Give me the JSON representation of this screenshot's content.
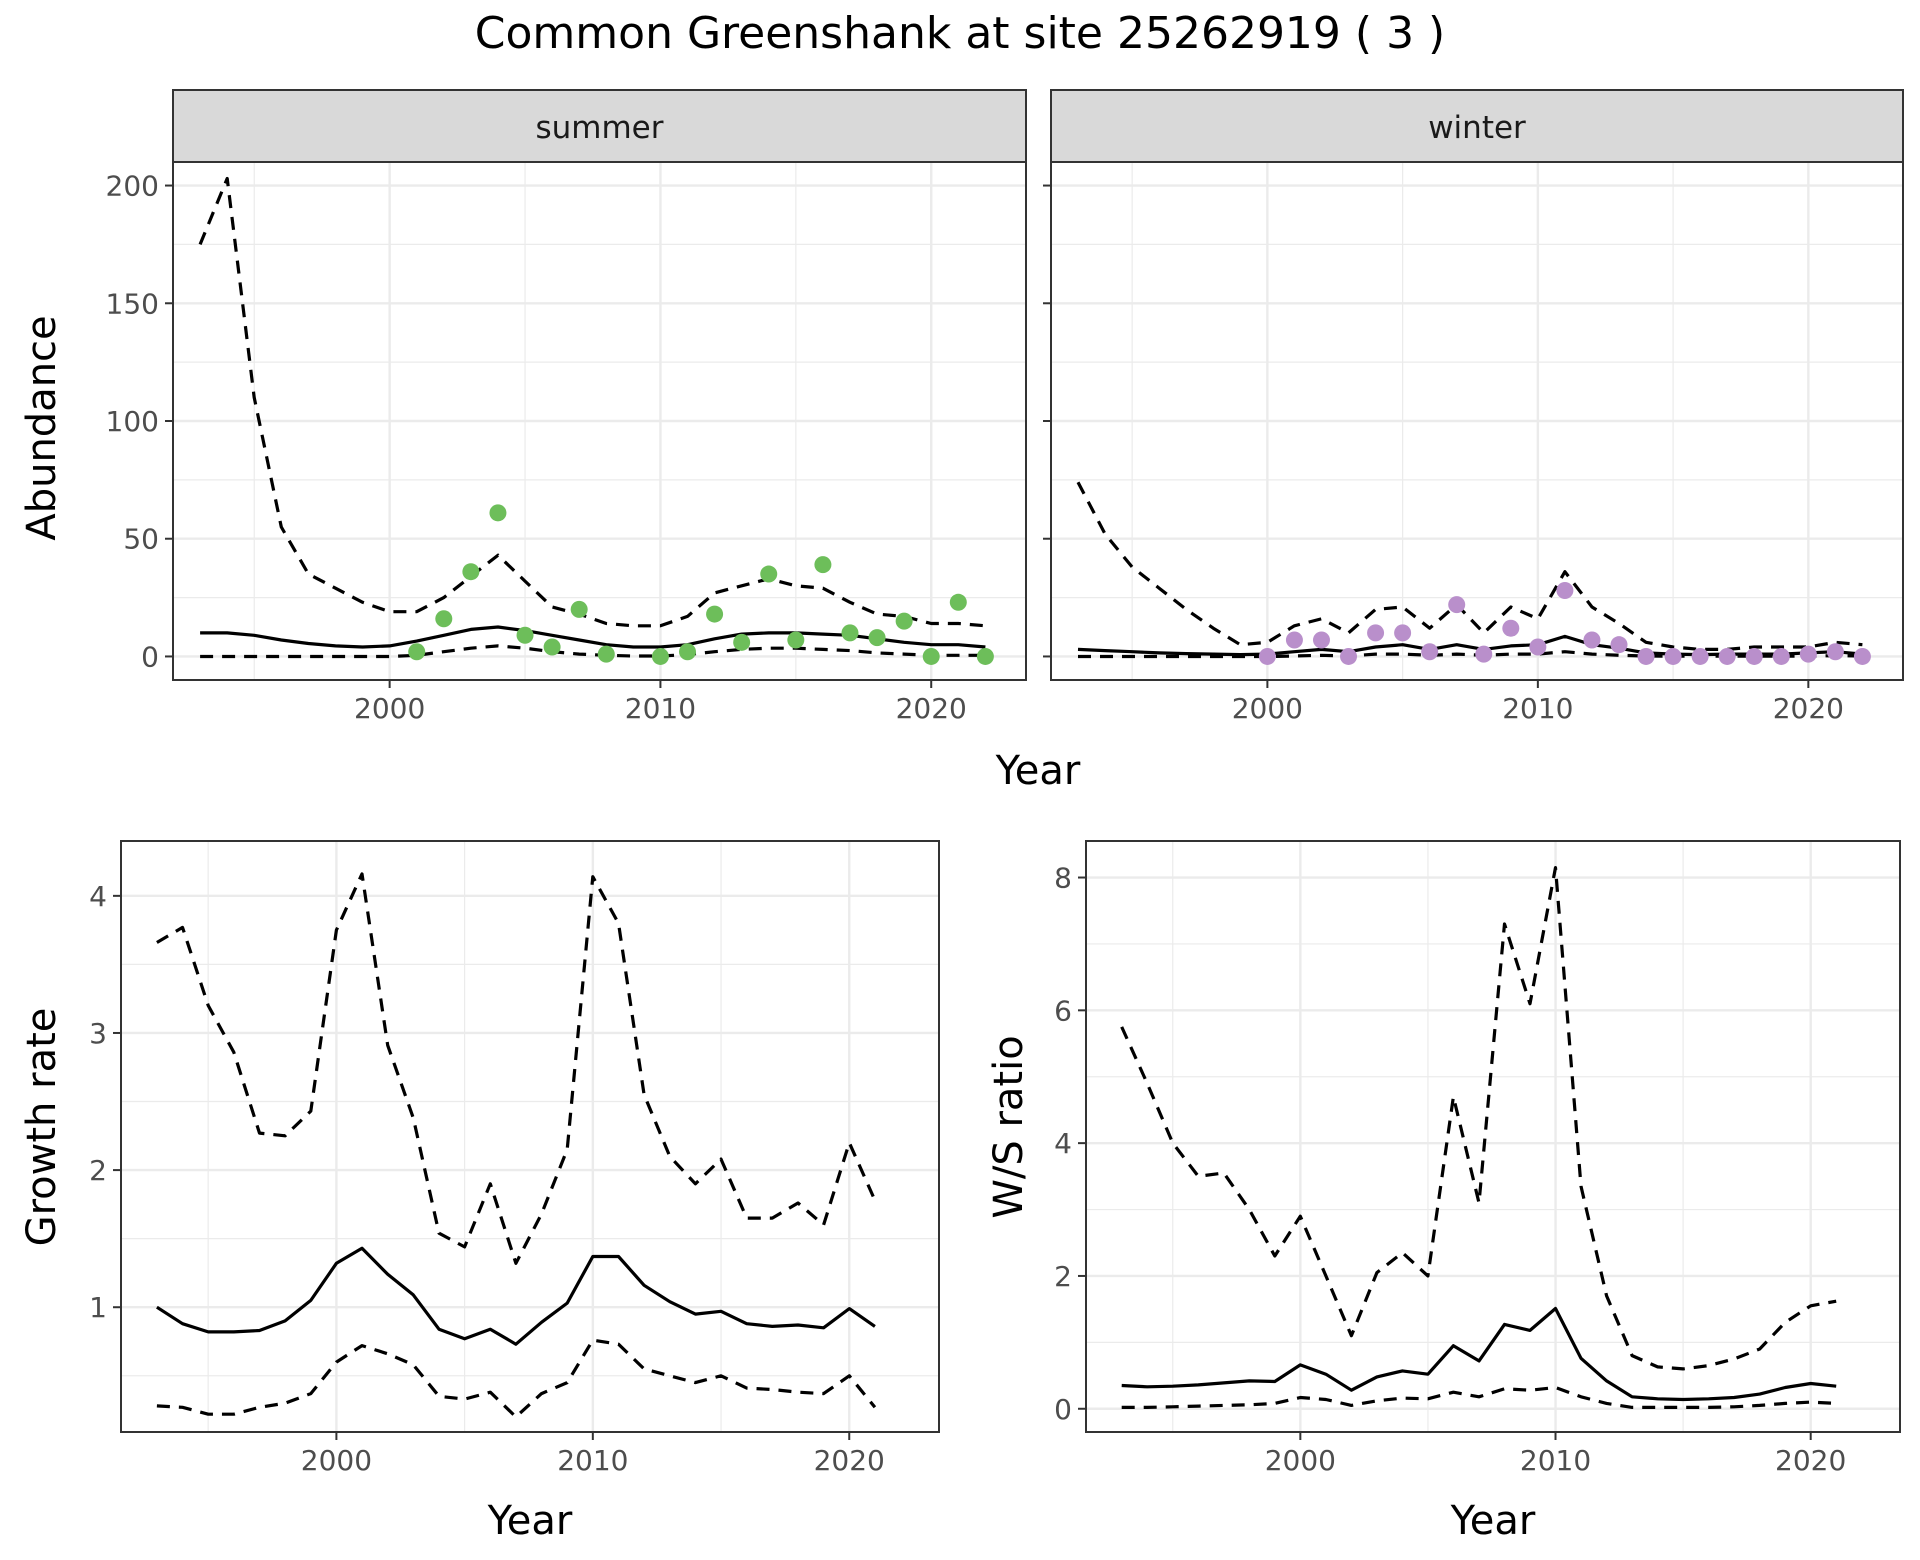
{
  "title": "Common Greenshank at site 25262919 ( 3 )",
  "colors": {
    "summer_points": "#6DBE5A",
    "winter_points": "#B98FCB",
    "lines": "#000000",
    "grid": "#EBEBEB",
    "strip_fill": "#D9D9D9"
  },
  "chart_data": [
    {
      "type": "line",
      "panel": "summer",
      "strip_label": "summer",
      "xlabel": "Year",
      "ylabel": "Abundance",
      "xlim": [
        1992,
        2023.5
      ],
      "ylim": [
        -10,
        210
      ],
      "xticks": [
        2000,
        2010,
        2020
      ],
      "yticks": [
        0,
        50,
        100,
        150,
        200
      ],
      "grid": true,
      "series": [
        {
          "style": "solid",
          "x": [
            1993,
            1994,
            1995,
            1996,
            1997,
            1998,
            1999,
            2000,
            2001,
            2002,
            2003,
            2004,
            2005,
            2006,
            2007,
            2008,
            2009,
            2010,
            2011,
            2012,
            2013,
            2014,
            2015,
            2016,
            2017,
            2018,
            2019,
            2020,
            2021,
            2022
          ],
          "y": [
            10,
            10,
            9,
            7,
            5.5,
            4.5,
            4,
            4.5,
            6.5,
            9,
            11.5,
            12.5,
            11,
            9,
            7,
            5,
            4,
            4,
            5,
            7.5,
            9.5,
            10,
            10,
            9.5,
            9,
            7.5,
            6,
            5,
            5,
            4
          ]
        },
        {
          "style": "dashed",
          "x": [
            1993,
            1994,
            1995,
            1996,
            1997,
            1998,
            1999,
            2000,
            2001,
            2002,
            2003,
            2004,
            2005,
            2006,
            2007,
            2008,
            2009,
            2010,
            2011,
            2012,
            2013,
            2014,
            2015,
            2016,
            2017,
            2018,
            2019,
            2020,
            2021,
            2022
          ],
          "y": [
            175,
            203,
            110,
            55,
            35,
            29,
            23,
            19,
            19,
            25,
            34,
            43,
            32,
            21,
            18,
            14,
            13,
            13,
            17,
            27,
            30,
            33,
            30,
            29,
            23,
            18,
            17,
            14,
            14,
            13
          ]
        },
        {
          "style": "dashed",
          "x": [
            1993,
            1994,
            1995,
            1996,
            1997,
            1998,
            1999,
            2000,
            2001,
            2002,
            2003,
            2004,
            2005,
            2006,
            2007,
            2008,
            2009,
            2010,
            2011,
            2012,
            2013,
            2014,
            2015,
            2016,
            2017,
            2018,
            2019,
            2020,
            2021,
            2022
          ],
          "y": [
            0,
            0,
            0,
            0,
            0,
            0,
            0,
            0,
            0.5,
            2,
            3.5,
            4.5,
            3.5,
            2,
            1,
            0.5,
            0.2,
            0.2,
            0.8,
            2,
            3,
            3.5,
            3.5,
            3,
            2.5,
            1.5,
            1,
            0.5,
            0.5,
            0.5
          ]
        }
      ],
      "points": {
        "x": [
          2001,
          2002,
          2003,
          2004,
          2005,
          2006,
          2007,
          2008,
          2010,
          2011,
          2012,
          2013,
          2014,
          2015,
          2016,
          2017,
          2018,
          2019,
          2020,
          2021,
          2022
        ],
        "y": [
          2,
          16,
          36,
          61,
          9,
          4,
          20,
          1,
          0,
          2,
          18,
          6,
          35,
          7,
          39,
          10,
          8,
          15,
          0,
          23,
          0
        ]
      }
    },
    {
      "type": "line",
      "panel": "winter",
      "strip_label": "winter",
      "xlabel": "Year",
      "ylabel": "Abundance",
      "xlim": [
        1992,
        2023.5
      ],
      "ylim": [
        -10,
        210
      ],
      "xticks": [
        2000,
        2010,
        2020
      ],
      "yticks": [
        0,
        50,
        100,
        150,
        200
      ],
      "grid": true,
      "series": [
        {
          "style": "solid",
          "x": [
            1993,
            1994,
            1995,
            1996,
            1997,
            1998,
            1999,
            2000,
            2001,
            2002,
            2003,
            2004,
            2005,
            2006,
            2007,
            2008,
            2009,
            2010,
            2011,
            2012,
            2013,
            2014,
            2015,
            2016,
            2017,
            2018,
            2019,
            2020,
            2021,
            2022
          ],
          "y": [
            3,
            2.5,
            2,
            1.5,
            1.2,
            1,
            0.8,
            1,
            2,
            3,
            2,
            4,
            5,
            3,
            5,
            3,
            4.5,
            5,
            8.5,
            5,
            3.5,
            1.5,
            1,
            0.8,
            1,
            1,
            1,
            1.5,
            2,
            1
          ]
        },
        {
          "style": "dashed",
          "x": [
            1993,
            1994,
            1995,
            1996,
            1997,
            1998,
            1999,
            2000,
            2001,
            2002,
            2003,
            2004,
            2005,
            2006,
            2007,
            2008,
            2009,
            2010,
            2011,
            2012,
            2013,
            2014,
            2015,
            2016,
            2017,
            2018,
            2019,
            2020,
            2021,
            2022
          ],
          "y": [
            74,
            52,
            38,
            29,
            20,
            12,
            5,
            6,
            13,
            16,
            10,
            20,
            21,
            12,
            22,
            10,
            21,
            16,
            36,
            21,
            14,
            6,
            4,
            3,
            3,
            4,
            4,
            4,
            6,
            5
          ]
        },
        {
          "style": "dashed",
          "x": [
            1993,
            1994,
            1995,
            1996,
            1997,
            1998,
            1999,
            2000,
            2001,
            2002,
            2003,
            2004,
            2005,
            2006,
            2007,
            2008,
            2009,
            2010,
            2011,
            2012,
            2013,
            2014,
            2015,
            2016,
            2017,
            2018,
            2019,
            2020,
            2021,
            2022
          ],
          "y": [
            0,
            0,
            0,
            0,
            0,
            0,
            0,
            0,
            0.2,
            0.5,
            0.2,
            1,
            1,
            0.5,
            1,
            0.5,
            1,
            1,
            2,
            1,
            0.5,
            0.2,
            0.1,
            0.1,
            0.1,
            0.1,
            0.1,
            0.2,
            0.3,
            0.2
          ]
        }
      ],
      "points": {
        "x": [
          2000,
          2001,
          2002,
          2003,
          2004,
          2005,
          2006,
          2007,
          2008,
          2009,
          2010,
          2011,
          2012,
          2013,
          2014,
          2015,
          2016,
          2017,
          2018,
          2019,
          2020,
          2021,
          2022
        ],
        "y": [
          0,
          7,
          7,
          0,
          10,
          10,
          2,
          22,
          1,
          12,
          4,
          28,
          7,
          5,
          0,
          0,
          0,
          0,
          0,
          0,
          1,
          2,
          0
        ]
      }
    },
    {
      "type": "line",
      "panel": "growth",
      "xlabel": "Year",
      "ylabel": "Growth rate",
      "xlim": [
        1991.6,
        2023.5
      ],
      "ylim": [
        0.09,
        4.4
      ],
      "xticks": [
        2000,
        2010,
        2020
      ],
      "yticks": [
        1,
        2,
        3,
        4
      ],
      "grid": true,
      "series": [
        {
          "style": "solid",
          "x": [
            1993,
            1994,
            1995,
            1996,
            1997,
            1998,
            1999,
            2000,
            2001,
            2002,
            2003,
            2004,
            2005,
            2006,
            2007,
            2008,
            2009,
            2010,
            2011,
            2012,
            2013,
            2014,
            2015,
            2016,
            2017,
            2018,
            2019,
            2020,
            2021
          ],
          "y": [
            1.0,
            0.88,
            0.82,
            0.82,
            0.83,
            0.9,
            1.05,
            1.32,
            1.43,
            1.24,
            1.09,
            0.84,
            0.77,
            0.84,
            0.73,
            0.89,
            1.03,
            1.37,
            1.37,
            1.16,
            1.04,
            0.95,
            0.97,
            0.88,
            0.86,
            0.87,
            0.85,
            0.99,
            0.86
          ]
        },
        {
          "style": "dashed",
          "x": [
            1993,
            1994,
            1995,
            1996,
            1997,
            1998,
            1999,
            2000,
            2001,
            2002,
            2003,
            2004,
            2005,
            2006,
            2007,
            2008,
            2009,
            2010,
            2011,
            2012,
            2013,
            2014,
            2015,
            2016,
            2017,
            2018,
            2019,
            2020,
            2021
          ],
          "y": [
            3.66,
            3.77,
            3.2,
            2.86,
            2.27,
            2.25,
            2.43,
            3.75,
            4.16,
            2.91,
            2.38,
            1.54,
            1.44,
            1.9,
            1.32,
            1.68,
            2.15,
            4.14,
            3.8,
            2.55,
            2.1,
            1.9,
            2.08,
            1.65,
            1.65,
            1.76,
            1.6,
            2.2,
            1.78
          ]
        },
        {
          "style": "dashed",
          "x": [
            1993,
            1994,
            1995,
            1996,
            1997,
            1998,
            1999,
            2000,
            2001,
            2002,
            2003,
            2004,
            2005,
            2006,
            2007,
            2008,
            2009,
            2010,
            2011,
            2012,
            2013,
            2014,
            2015,
            2016,
            2017,
            2018,
            2019,
            2020,
            2021
          ],
          "y": [
            0.28,
            0.27,
            0.22,
            0.22,
            0.27,
            0.3,
            0.37,
            0.6,
            0.72,
            0.66,
            0.58,
            0.35,
            0.33,
            0.38,
            0.2,
            0.37,
            0.45,
            0.76,
            0.73,
            0.55,
            0.5,
            0.45,
            0.5,
            0.41,
            0.4,
            0.38,
            0.37,
            0.5,
            0.27
          ]
        }
      ]
    },
    {
      "type": "line",
      "panel": "ratio",
      "xlabel": "Year",
      "ylabel": "W/S ratio",
      "xlim": [
        1991.6,
        2023.5
      ],
      "ylim": [
        -0.35,
        8.55
      ],
      "xticks": [
        2000,
        2010,
        2020
      ],
      "yticks": [
        0,
        2,
        4,
        6,
        8
      ],
      "grid": true,
      "series": [
        {
          "style": "solid",
          "x": [
            1993,
            1994,
            1995,
            1996,
            1997,
            1998,
            1999,
            2000,
            2001,
            2002,
            2003,
            2004,
            2005,
            2006,
            2007,
            2008,
            2009,
            2010,
            2011,
            2012,
            2013,
            2014,
            2015,
            2016,
            2017,
            2018,
            2019,
            2020,
            2021
          ],
          "y": [
            0.35,
            0.33,
            0.34,
            0.36,
            0.39,
            0.42,
            0.41,
            0.66,
            0.52,
            0.28,
            0.48,
            0.57,
            0.52,
            0.95,
            0.72,
            1.27,
            1.18,
            1.51,
            0.76,
            0.42,
            0.18,
            0.15,
            0.14,
            0.15,
            0.17,
            0.22,
            0.32,
            0.38,
            0.34
          ]
        },
        {
          "style": "dashed",
          "x": [
            1993,
            1994,
            1995,
            1996,
            1997,
            1998,
            1999,
            2000,
            2001,
            2002,
            2003,
            2004,
            2005,
            2006,
            2007,
            2008,
            2009,
            2010,
            2011,
            2012,
            2013,
            2014,
            2015,
            2016,
            2017,
            2018,
            2019,
            2020,
            2021
          ],
          "y": [
            5.75,
            4.9,
            4.0,
            3.5,
            3.55,
            3.0,
            2.3,
            2.9,
            2.0,
            1.1,
            2.05,
            2.35,
            2.0,
            4.7,
            3.1,
            7.3,
            6.1,
            8.15,
            3.35,
            1.7,
            0.8,
            0.63,
            0.6,
            0.65,
            0.75,
            0.9,
            1.3,
            1.55,
            1.62
          ]
        },
        {
          "style": "dashed",
          "x": [
            1993,
            1994,
            1995,
            1996,
            1997,
            1998,
            1999,
            2000,
            2001,
            2002,
            2003,
            2004,
            2005,
            2006,
            2007,
            2008,
            2009,
            2010,
            2011,
            2012,
            2013,
            2014,
            2015,
            2016,
            2017,
            2018,
            2019,
            2020,
            2021
          ],
          "y": [
            0.02,
            0.02,
            0.03,
            0.04,
            0.05,
            0.06,
            0.08,
            0.17,
            0.14,
            0.05,
            0.12,
            0.16,
            0.15,
            0.25,
            0.18,
            0.3,
            0.28,
            0.32,
            0.18,
            0.08,
            0.02,
            0.02,
            0.02,
            0.02,
            0.03,
            0.05,
            0.08,
            0.1,
            0.08
          ]
        }
      ]
    }
  ]
}
